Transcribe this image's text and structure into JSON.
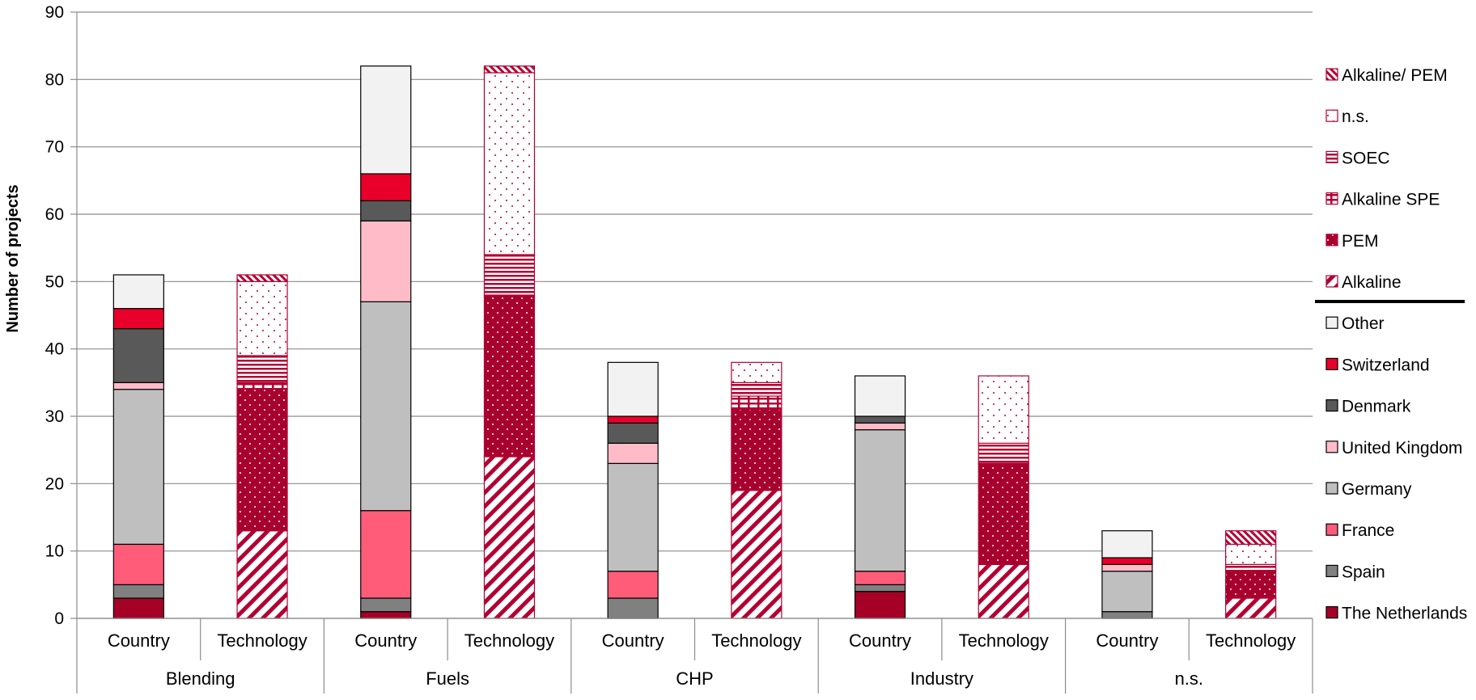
{
  "chart_data": {
    "type": "bar",
    "stacked": true,
    "ylabel": "Number of projects",
    "ylim": [
      0,
      90
    ],
    "yticks": [
      0,
      10,
      20,
      30,
      40,
      50,
      60,
      70,
      80,
      90
    ],
    "groups": [
      {
        "label": "Blending",
        "bars": [
          {
            "label": "Country",
            "kind": "country",
            "values": {
              "The Netherlands": 3,
              "Spain": 2,
              "France": 6,
              "Germany": 23,
              "United Kingdom": 1,
              "Denmark": 8,
              "Switzerland": 3,
              "Other": 5
            }
          },
          {
            "label": "Technology",
            "kind": "technology",
            "values": {
              "Alkaline": 13,
              "PEM": 21,
              "Alkaline SPE": 1,
              "SOEC": 4,
              "n.s.": 11,
              "Alkaline/ PEM": 1
            }
          }
        ]
      },
      {
        "label": "Fuels",
        "bars": [
          {
            "label": "Country",
            "kind": "country",
            "values": {
              "The Netherlands": 1,
              "Spain": 2,
              "France": 13,
              "Germany": 31,
              "United Kingdom": 12,
              "Denmark": 3,
              "Switzerland": 4,
              "Other": 16
            }
          },
          {
            "label": "Technology",
            "kind": "technology",
            "values": {
              "Alkaline": 24,
              "PEM": 24,
              "Alkaline SPE": 0,
              "SOEC": 6,
              "n.s.": 27,
              "Alkaline/ PEM": 1
            }
          }
        ]
      },
      {
        "label": "CHP",
        "bars": [
          {
            "label": "Country",
            "kind": "country",
            "values": {
              "The Netherlands": 0,
              "Spain": 3,
              "France": 4,
              "Germany": 16,
              "United Kingdom": 3,
              "Denmark": 3,
              "Switzerland": 1,
              "Other": 8
            }
          },
          {
            "label": "Technology",
            "kind": "technology",
            "values": {
              "Alkaline": 19,
              "PEM": 12,
              "Alkaline SPE": 2,
              "SOEC": 2,
              "n.s.": 3,
              "Alkaline/ PEM": 0
            }
          }
        ]
      },
      {
        "label": "Industry",
        "bars": [
          {
            "label": "Country",
            "kind": "country",
            "values": {
              "The Netherlands": 4,
              "Spain": 1,
              "France": 2,
              "Germany": 21,
              "United Kingdom": 1,
              "Denmark": 1,
              "Switzerland": 0,
              "Other": 6
            }
          },
          {
            "label": "Technology",
            "kind": "technology",
            "values": {
              "Alkaline": 8,
              "PEM": 15,
              "Alkaline SPE": 0,
              "SOEC": 3,
              "n.s.": 10,
              "Alkaline/ PEM": 0
            }
          }
        ]
      },
      {
        "label": "n.s.",
        "bars": [
          {
            "label": "Country",
            "kind": "country",
            "values": {
              "The Netherlands": 0,
              "Spain": 1,
              "France": 0,
              "Germany": 6,
              "United Kingdom": 1,
              "Denmark": 0,
              "Switzerland": 1,
              "Other": 4
            }
          },
          {
            "label": "Technology",
            "kind": "technology",
            "values": {
              "Alkaline": 3,
              "PEM": 4,
              "Alkaline SPE": 0,
              "SOEC": 1,
              "n.s.": 3,
              "Alkaline/ PEM": 2
            }
          }
        ]
      }
    ],
    "country_series": [
      {
        "name": "The Netherlands",
        "color": "#A50026"
      },
      {
        "name": "Spain",
        "color": "#808080"
      },
      {
        "name": "France",
        "color": "#FF5C7A"
      },
      {
        "name": "Germany",
        "color": "#BFBFBF"
      },
      {
        "name": "United Kingdom",
        "color": "#FFBCC8"
      },
      {
        "name": "Denmark",
        "color": "#595959"
      },
      {
        "name": "Switzerland",
        "color": "#E8002A"
      },
      {
        "name": "Other",
        "color": "#F2F2F2"
      }
    ],
    "technology_series": [
      {
        "name": "Alkaline",
        "pattern": "diagonal-stripes",
        "color": "#B30032"
      },
      {
        "name": "PEM",
        "pattern": "dots-on-fill",
        "color": "#B30032"
      },
      {
        "name": "Alkaline SPE",
        "pattern": "grid",
        "color": "#B30032"
      },
      {
        "name": "SOEC",
        "pattern": "horizontal-stripes",
        "color": "#B30032"
      },
      {
        "name": "n.s.",
        "pattern": "sparse-dots",
        "color": "#B30032"
      },
      {
        "name": "Alkaline/ PEM",
        "pattern": "dense-diagonal",
        "color": "#B30032"
      }
    ],
    "legend": [
      "Alkaline/ PEM",
      "n.s.",
      "SOEC",
      "Alkaline SPE",
      "PEM",
      "Alkaline",
      "Other",
      "Switzerland",
      "Denmark",
      "United Kingdom",
      "Germany",
      "France",
      "Spain",
      "The Netherlands"
    ]
  }
}
